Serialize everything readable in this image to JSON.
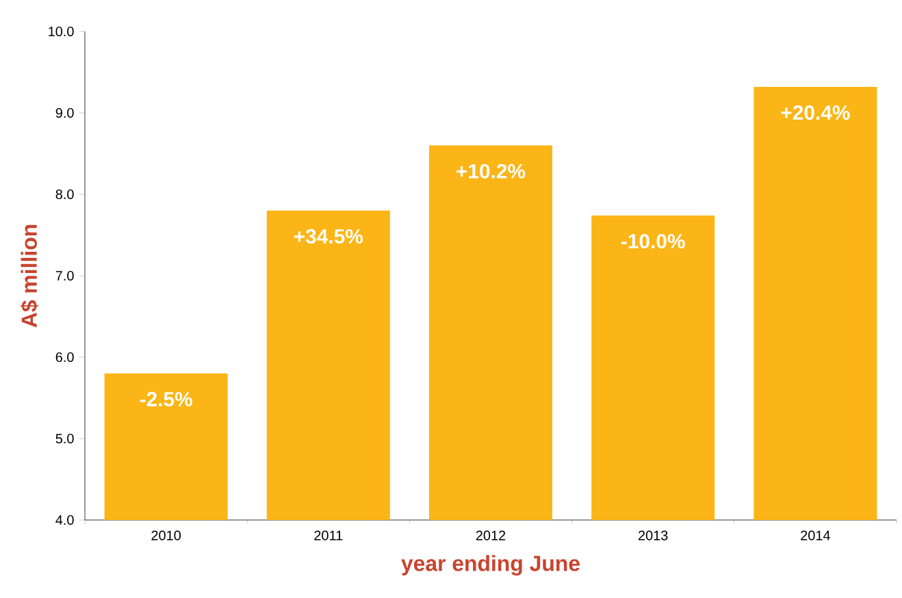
{
  "chart_data": {
    "type": "bar",
    "ylabel": "A$ million",
    "xlabel": "year ending June",
    "categories": [
      "2010",
      "2011",
      "2012",
      "2013",
      "2014"
    ],
    "values": [
      5.8,
      7.8,
      8.6,
      7.74,
      9.32
    ],
    "annotations": [
      {
        "text": "-2.5%",
        "x": "2010",
        "y": 5.8
      },
      {
        "text": "+34.5%",
        "x": "2011",
        "y": 7.8
      },
      {
        "text": "+10.2%",
        "x": "2012",
        "y": 8.6
      },
      {
        "text": "-10.0%",
        "x": "2013",
        "y": 7.74
      },
      {
        "text": "+20.4%",
        "x": "2014",
        "y": 9.32
      }
    ],
    "color": "#fbb516",
    "ylim": [
      4,
      10
    ],
    "yticks": [
      {
        "value": 4,
        "label": "4.0"
      },
      {
        "value": 5,
        "label": "5.0"
      },
      {
        "value": 6,
        "label": "6.0"
      },
      {
        "value": 7,
        "label": "7.0"
      },
      {
        "value": 8,
        "label": "8.0"
      },
      {
        "value": 9,
        "label": "9.0"
      },
      {
        "value": 10,
        "label": "10.0"
      }
    ],
    "grid": false
  }
}
